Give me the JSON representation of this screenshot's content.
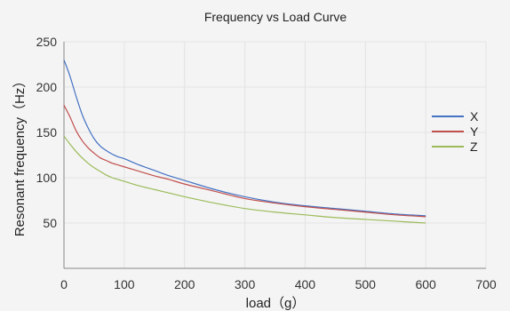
{
  "chart_data": {
    "type": "line",
    "title": "Frequency vs Load Curve",
    "xlabel": "load（g）",
    "ylabel": "Resonant frequency（Hz）",
    "xlim": [
      0,
      700
    ],
    "ylim": [
      0,
      250
    ],
    "xticks": [
      0,
      100,
      200,
      300,
      400,
      500,
      600,
      700
    ],
    "yticks": [
      50,
      100,
      150,
      200,
      250
    ],
    "grid": true,
    "legend_position": "right",
    "series": [
      {
        "name": "X",
        "color": "#4472c4",
        "x": [
          0,
          10,
          20,
          30,
          40,
          50,
          60,
          70,
          80,
          90,
          100,
          125,
          150,
          175,
          200,
          250,
          300,
          350,
          400,
          450,
          500,
          550,
          600
        ],
        "y": [
          230,
          212,
          190,
          170,
          155,
          143,
          135,
          130,
          126,
          123,
          121,
          114,
          108,
          102,
          97,
          87,
          79,
          73,
          69,
          66,
          63,
          60,
          58
        ]
      },
      {
        "name": "Y",
        "color": "#c0504d",
        "x": [
          0,
          10,
          20,
          30,
          40,
          50,
          60,
          70,
          80,
          90,
          100,
          125,
          150,
          175,
          200,
          250,
          300,
          350,
          400,
          450,
          500,
          550,
          600
        ],
        "y": [
          180,
          167,
          152,
          141,
          133,
          127,
          122,
          119,
          116,
          114,
          112,
          107,
          102,
          98,
          93,
          85,
          77,
          72,
          68,
          65,
          62,
          59,
          57
        ]
      },
      {
        "name": "Z",
        "color": "#9bbb59",
        "x": [
          0,
          10,
          20,
          30,
          40,
          50,
          60,
          70,
          80,
          90,
          100,
          125,
          150,
          175,
          200,
          250,
          300,
          350,
          400,
          450,
          500,
          550,
          600
        ],
        "y": [
          146,
          137,
          129,
          122,
          116,
          111,
          107,
          103,
          100,
          98,
          96,
          91,
          87,
          83,
          79,
          72,
          66,
          62,
          59,
          56,
          54,
          52,
          50
        ]
      }
    ]
  }
}
